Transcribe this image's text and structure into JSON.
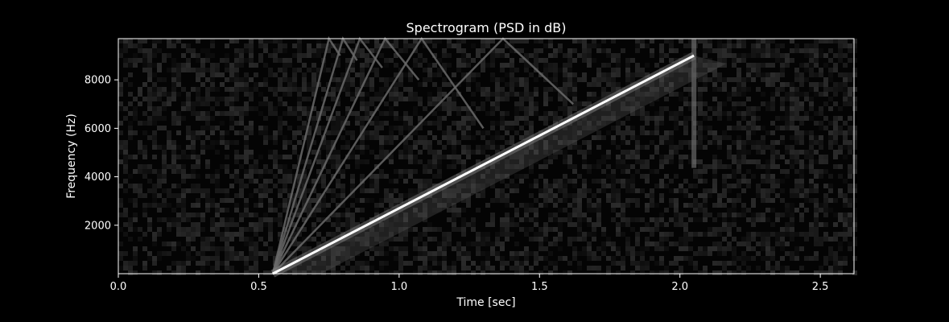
{
  "chart_data": {
    "type": "heatmap",
    "title": "Spectrogram (PSD in dB)",
    "xlabel": "Time [sec]",
    "ylabel": "Frequency (Hz)",
    "xlim": [
      0.0,
      2.62
    ],
    "ylim": [
      0,
      9700
    ],
    "xticks": [
      0.0,
      0.5,
      1.0,
      1.5,
      2.0,
      2.5
    ],
    "xtick_labels": [
      "0.0",
      "0.5",
      "1.0",
      "1.5",
      "2.0",
      "2.5"
    ],
    "yticks": [
      2000,
      4000,
      6000,
      8000
    ],
    "ytick_labels": [
      "2000",
      "4000",
      "6000",
      "8000"
    ],
    "grid": false,
    "colormap": "gray",
    "features": {
      "main_chirp": {
        "t": [
          0.55,
          2.05
        ],
        "f": [
          0,
          9000
        ]
      },
      "aliased_harmonics": [
        {
          "start_t": 0.55,
          "peak_t": 1.37,
          "peak_f": 9700,
          "end_t": 1.62,
          "end_f": 7000
        },
        {
          "start_t": 0.55,
          "peak_t": 1.08,
          "peak_f": 9700,
          "end_t": 1.3,
          "end_f": 6000
        },
        {
          "start_t": 0.55,
          "peak_t": 0.95,
          "peak_f": 9700,
          "end_t": 1.07,
          "end_f": 8000
        },
        {
          "start_t": 0.55,
          "peak_t": 0.86,
          "peak_f": 9700,
          "end_t": 0.94,
          "end_f": 8500
        },
        {
          "start_t": 0.55,
          "peak_t": 0.8,
          "peak_f": 9700,
          "end_t": 0.85,
          "end_f": 8800
        },
        {
          "start_t": 0.55,
          "peak_t": 0.75,
          "peak_f": 9700,
          "end_t": 0.79,
          "end_f": 9000
        }
      ],
      "transient_t": 2.05
    }
  }
}
